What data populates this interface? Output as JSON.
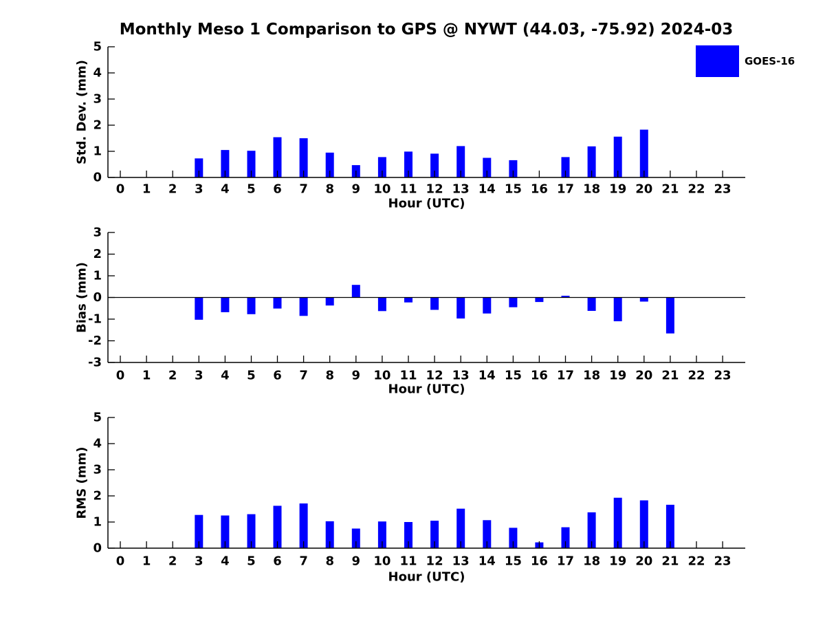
{
  "title": "Monthly Meso 1 Comparison to GPS @ NYWT (44.03, -75.92) 2024-03",
  "legend": {
    "label": "GOES-16",
    "color": "#0000ff"
  },
  "bar_color": "#0000ff",
  "axis_color": "#000000",
  "chart_data": [
    {
      "type": "bar",
      "ylabel": "Std. Dev. (mm)",
      "xlabel": "Hour (UTC)",
      "ylim": [
        0,
        5
      ],
      "yticks": [
        0,
        1,
        2,
        3,
        4,
        5
      ],
      "categories": [
        "0",
        "1",
        "2",
        "3",
        "4",
        "5",
        "6",
        "7",
        "8",
        "9",
        "10",
        "11",
        "12",
        "13",
        "14",
        "15",
        "16",
        "17",
        "18",
        "19",
        "20",
        "21",
        "22",
        "23"
      ],
      "series": [
        {
          "name": "GOES-16",
          "values": [
            0,
            0,
            0,
            0.73,
            1.05,
            1.02,
            1.54,
            1.5,
            0.95,
            0.47,
            0.78,
            0.99,
            0.91,
            1.2,
            0.75,
            0.66,
            0,
            0.78,
            1.19,
            1.56,
            1.83,
            0,
            0,
            0
          ]
        }
      ]
    },
    {
      "type": "bar",
      "ylabel": "Bias (mm)",
      "xlabel": "Hour (UTC)",
      "ylim": [
        -3,
        3
      ],
      "yticks": [
        -3,
        -2,
        -1,
        0,
        1,
        2,
        3
      ],
      "zero_line": true,
      "categories": [
        "0",
        "1",
        "2",
        "3",
        "4",
        "5",
        "6",
        "7",
        "8",
        "9",
        "10",
        "11",
        "12",
        "13",
        "14",
        "15",
        "16",
        "17",
        "18",
        "19",
        "20",
        "21",
        "22",
        "23"
      ],
      "series": [
        {
          "name": "GOES-16",
          "values": [
            0,
            0,
            0,
            -1.03,
            -0.68,
            -0.77,
            -0.51,
            -0.85,
            -0.37,
            0.58,
            -0.63,
            -0.23,
            -0.57,
            -0.97,
            -0.74,
            -0.45,
            -0.21,
            0.08,
            -0.62,
            -1.1,
            -0.19,
            -1.66,
            0,
            0
          ]
        }
      ]
    },
    {
      "type": "bar",
      "ylabel": "RMS (mm)",
      "xlabel": "Hour (UTC)",
      "ylim": [
        0,
        5
      ],
      "yticks": [
        0,
        1,
        2,
        3,
        4,
        5
      ],
      "categories": [
        "0",
        "1",
        "2",
        "3",
        "4",
        "5",
        "6",
        "7",
        "8",
        "9",
        "10",
        "11",
        "12",
        "13",
        "14",
        "15",
        "16",
        "17",
        "18",
        "19",
        "20",
        "21",
        "22",
        "23"
      ],
      "series": [
        {
          "name": "GOES-16",
          "values": [
            0,
            0,
            0,
            1.27,
            1.25,
            1.3,
            1.62,
            1.71,
            1.03,
            0.75,
            1.02,
            1.0,
            1.05,
            1.51,
            1.07,
            0.78,
            0.22,
            0.8,
            1.37,
            1.93,
            1.83,
            1.66,
            0,
            0
          ]
        }
      ]
    }
  ]
}
